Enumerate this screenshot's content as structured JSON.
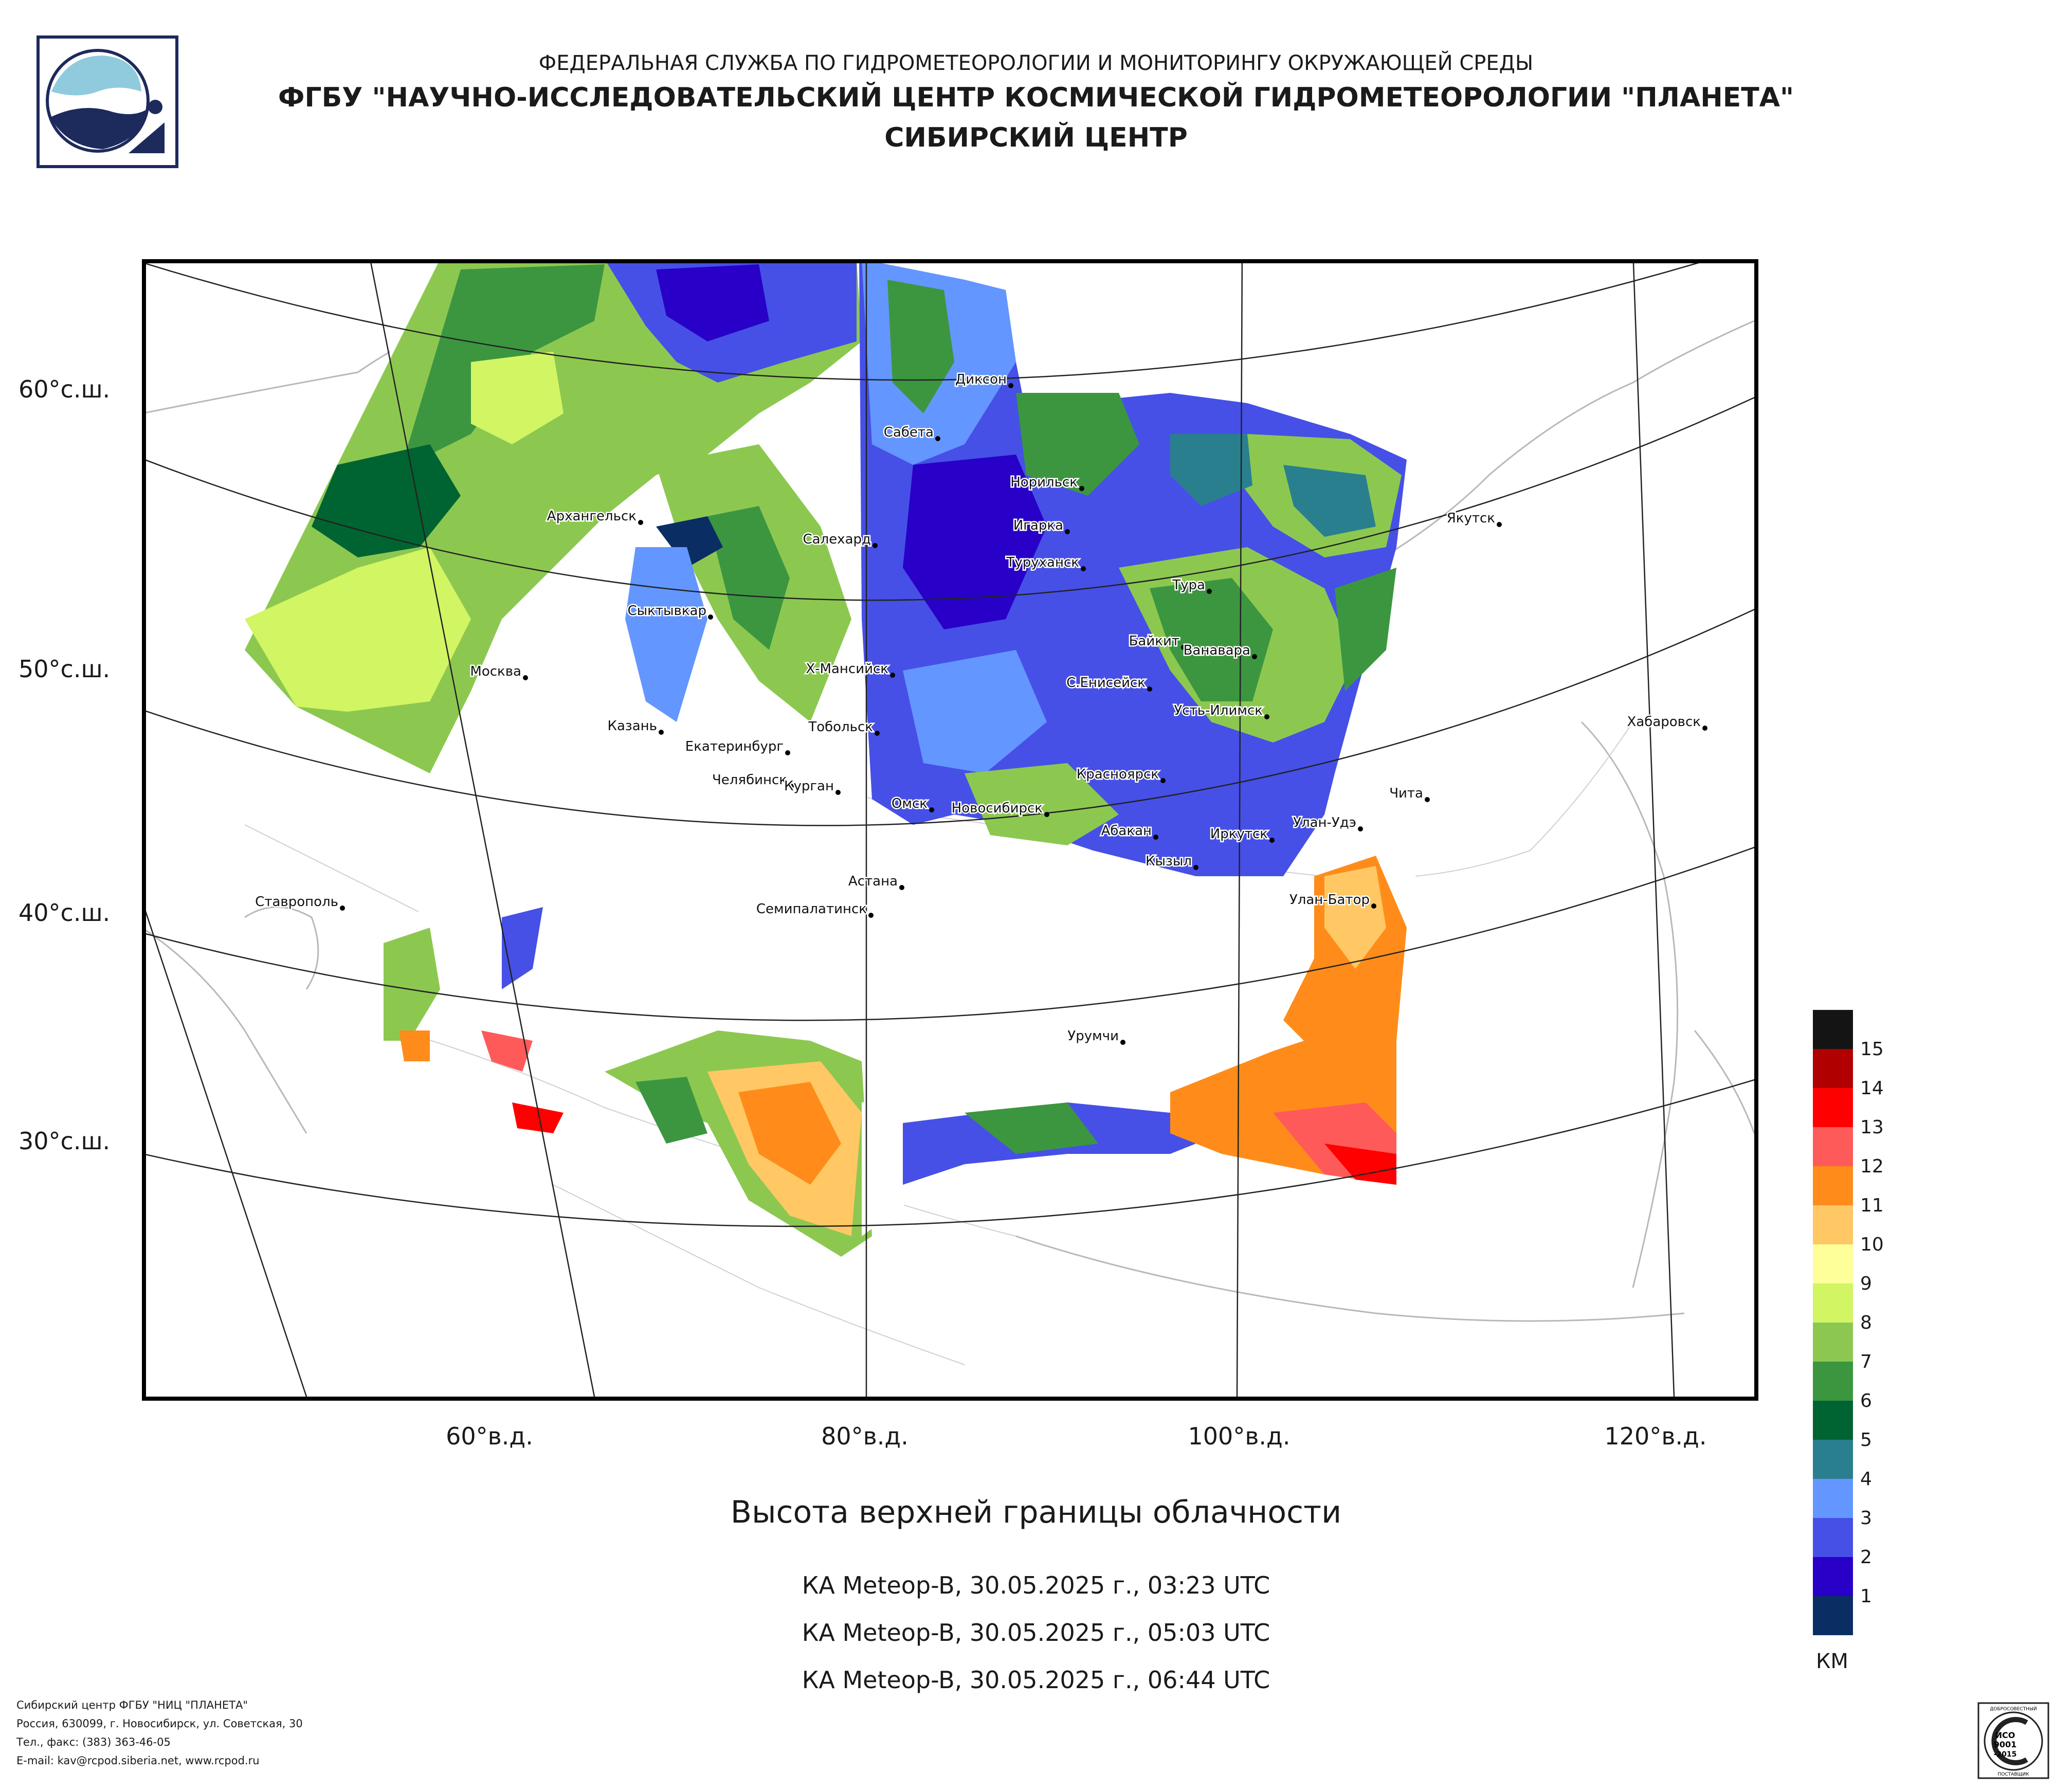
{
  "header": {
    "line1": "ФЕДЕРАЛЬНАЯ СЛУЖБА ПО ГИДРОМЕТЕОРОЛОГИИ И МОНИТОРИНГУ ОКРУЖАЮЩЕЙ СРЕДЫ",
    "line2": "ФГБУ \"НАУЧНО-ИССЛЕДОВАТЕЛЬСКИЙ ЦЕНТР КОСМИЧЕСКОЙ ГИДРОМЕТЕОРОЛОГИИ \"ПЛАНЕТА\"",
    "line3": "СИБИРСКИЙ ЦЕНТР"
  },
  "map": {
    "lat_labels": [
      "60°с.ш.",
      "50°с.ш.",
      "40°с.ш.",
      "30°с.ш."
    ],
    "lon_labels": [
      "60°в.д.",
      "80°в.д.",
      "100°в.д.",
      "120°в.д."
    ],
    "cities": [
      "Диксон",
      "Сабета",
      "Норильск",
      "Архангельск",
      "Салехард",
      "Игарка",
      "Туруханск",
      "Тура",
      "Якутск",
      "Сыктывкар",
      "Байкит",
      "Ванавара",
      "Москва",
      "Х-Мансийск",
      "С.Енисейск",
      "Усть-Илимск",
      "Хабаровск",
      "Казань",
      "Тобольск",
      "Екатеринбург",
      "Красноярск",
      "Чита",
      "Челябинск",
      "Курган",
      "Омск",
      "Новосибирск",
      "Абакан",
      "Улан-Удэ",
      "Иркутск",
      "Кызыл",
      "Астана",
      "Ставрополь",
      "Семипалатинск",
      "Улан-Батор",
      "Урумчи"
    ]
  },
  "title": "Высота верхней границы облачности",
  "passes": [
    "КА Meteop-B, 30.05.2025 г., 03:23 UTC",
    "КА Meteop-B, 30.05.2025 г., 05:03 UTC",
    "КА Meteop-B, 30.05.2025 г., 06:44 UTC"
  ],
  "legend": {
    "unit": "КМ",
    "items": [
      {
        "label": "15",
        "color": "#b00000"
      },
      {
        "label": "14",
        "color": "#ff0000"
      },
      {
        "label": "13",
        "color": "#ff5a5a"
      },
      {
        "label": "12",
        "color": "#ff8c1a"
      },
      {
        "label": "11",
        "color": "#ffc864"
      },
      {
        "label": "10",
        "color": "#ffff9a"
      },
      {
        "label": "9",
        "color": "#d2f564"
      },
      {
        "label": "8",
        "color": "#8cc850"
      },
      {
        "label": "7",
        "color": "#3c9640"
      },
      {
        "label": "6",
        "color": "#006432"
      },
      {
        "label": "5",
        "color": "#2a7f8f"
      },
      {
        "label": "4",
        "color": "#6496ff"
      },
      {
        "label": "3",
        "color": "#4650e6"
      },
      {
        "label": "2",
        "color": "#2800c8"
      },
      {
        "label": "1",
        "color": "#0a2d64"
      }
    ],
    "top_color": "#141414"
  },
  "footer": {
    "line1": "Сибирский центр ФГБУ \"НИЦ \"ПЛАНЕТА\"",
    "line2": "Россия, 630099, г. Новосибирск, ул. Советская, 30",
    "line3": "Тел., факс: (383) 363-46-05",
    "line4": "E-mail: kav@rcpod.siberia.net, www.rcpod.ru"
  },
  "cert": {
    "text1": "ИСО",
    "text2": "9001",
    "text3": "-2015",
    "arc_top": "ДОБРОСОВЕСТНЫЙ",
    "arc_bottom": "ПОСТАВЩИК"
  }
}
